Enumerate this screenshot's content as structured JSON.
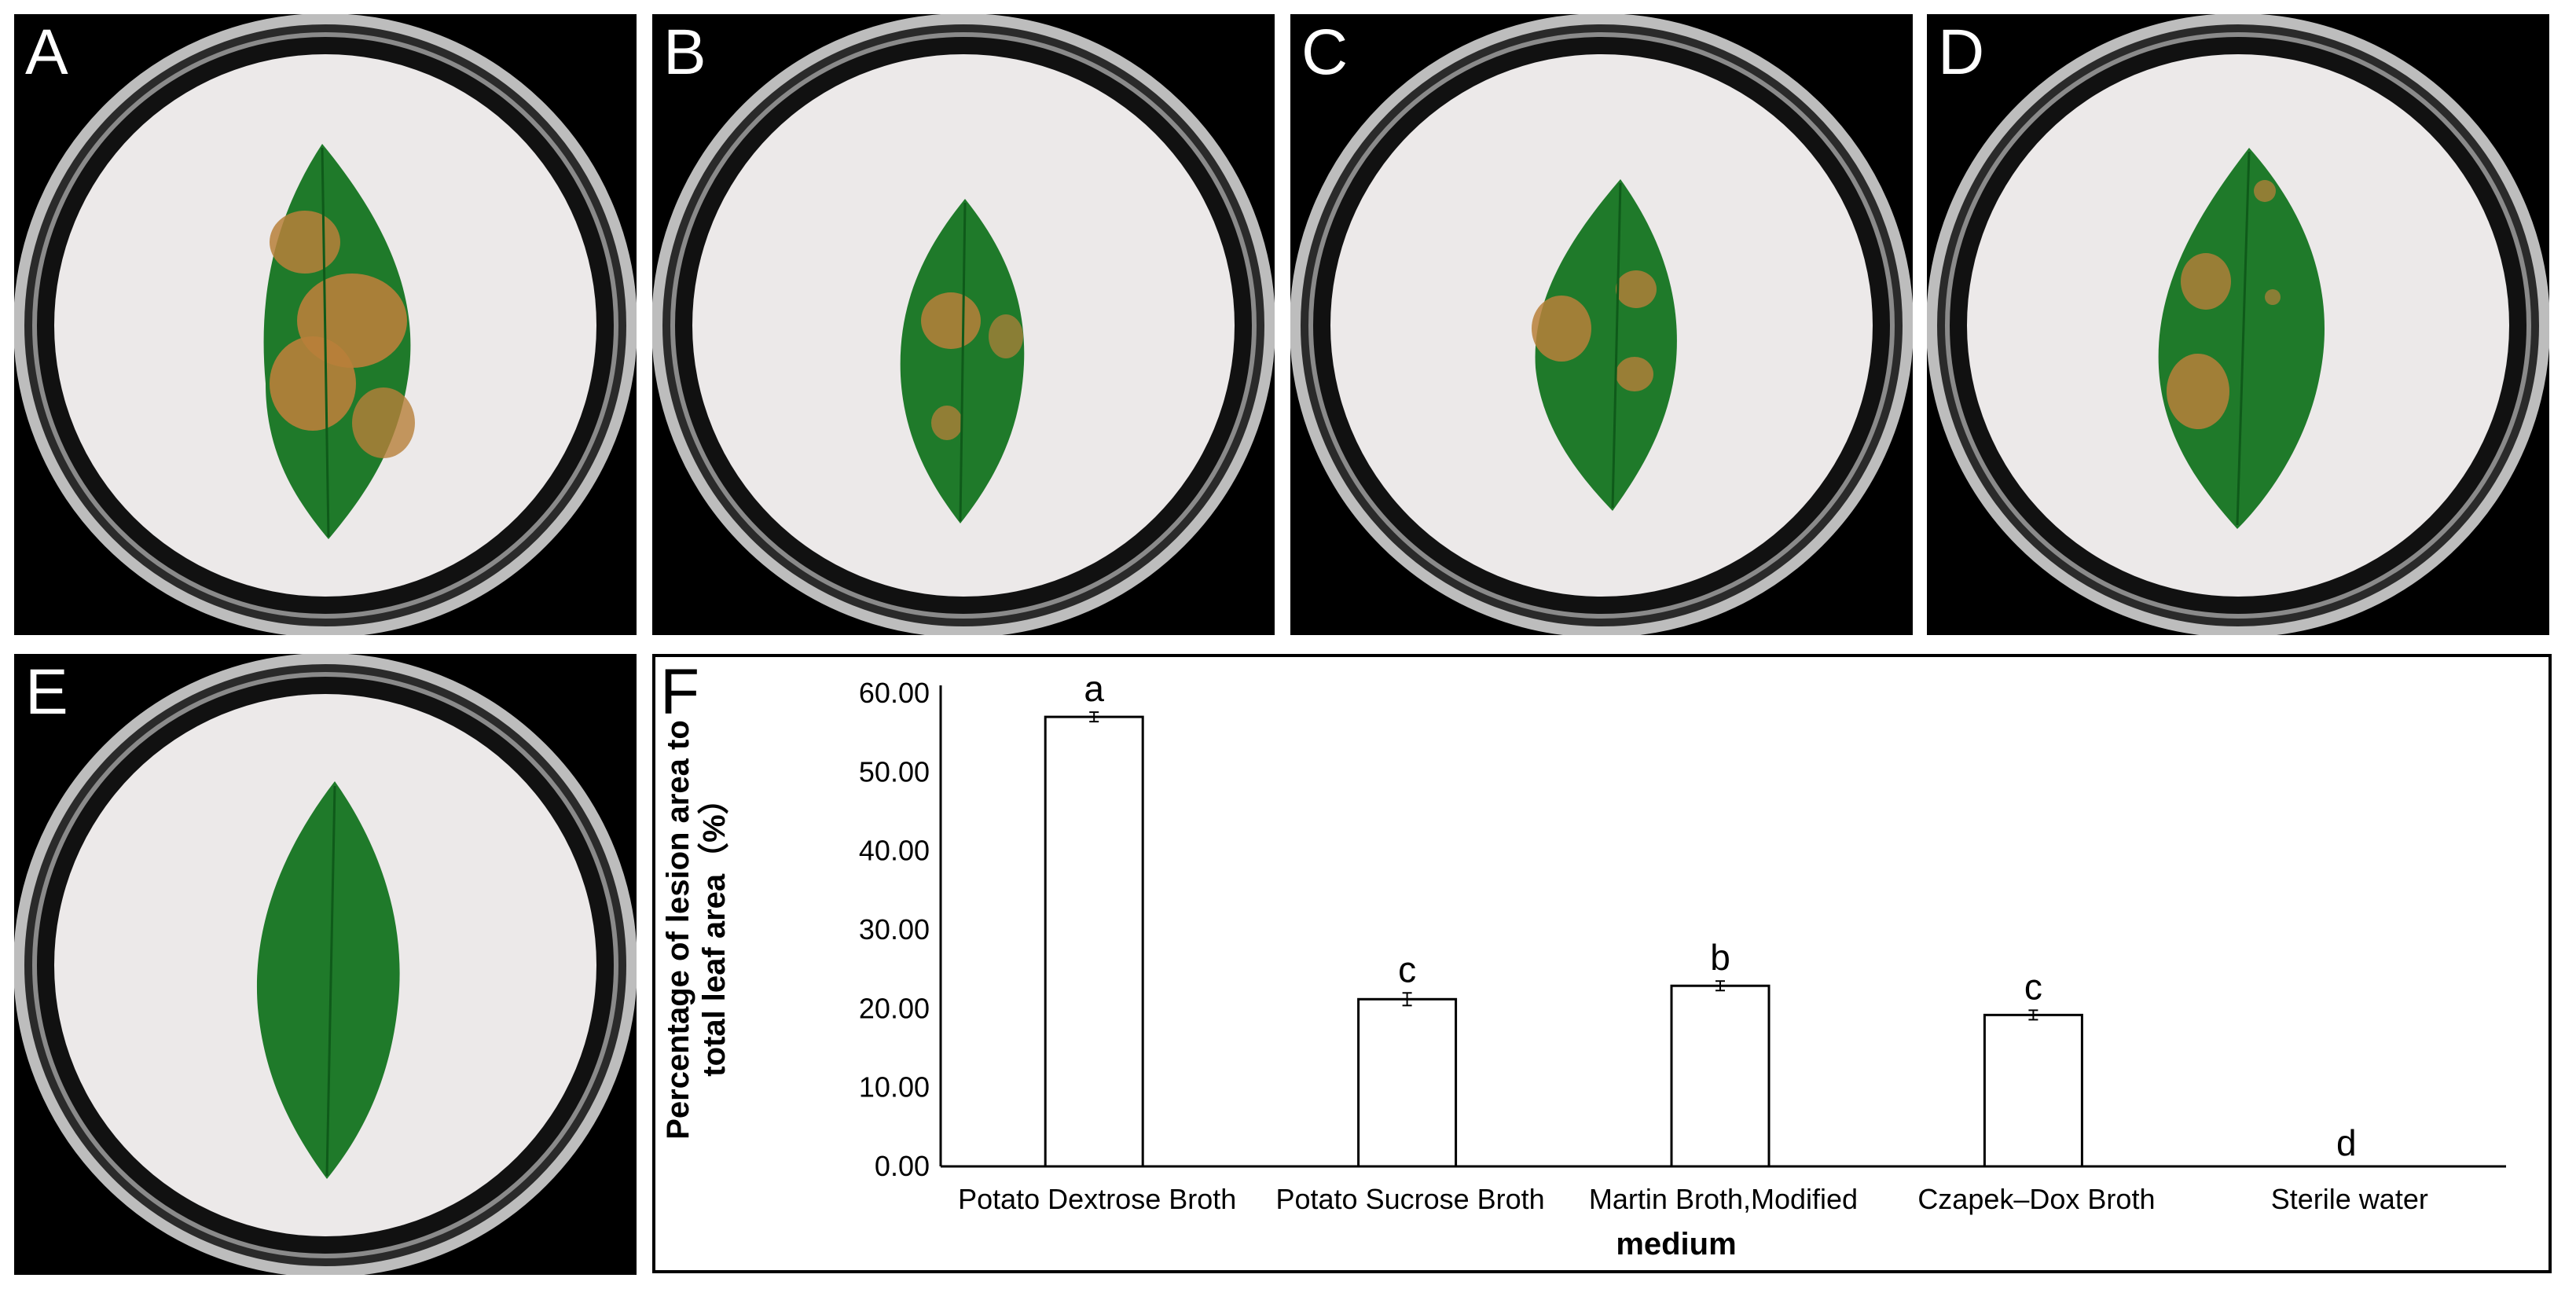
{
  "panels": [
    {
      "letter": "A"
    },
    {
      "letter": "B"
    },
    {
      "letter": "C"
    },
    {
      "letter": "D"
    },
    {
      "letter": "E"
    },
    {
      "letter": "F"
    }
  ],
  "colors": {
    "background": "#000000",
    "filter_paper": "#ece9e9",
    "leaf_green": "#1f7a2a",
    "lesion_brown": "#b8803a",
    "bar_fill": "#ffffff",
    "bar_stroke": "#000000"
  },
  "chart_data": {
    "type": "bar",
    "title": "",
    "xlabel": "medium",
    "ylabel": "Percentage of lesion area to total leaf area（%）",
    "ylabel_lines": [
      "Percentage of lesion area to",
      "total leaf area（%）"
    ],
    "categories": [
      "Potato Dextrose Broth",
      "Potato Sucrose Broth",
      "Martin Broth,Modified",
      "Czapek–Dox  Broth",
      "Sterile water"
    ],
    "values": [
      57.0,
      21.2,
      22.9,
      19.2,
      0.0
    ],
    "errors": [
      0.6,
      0.8,
      0.6,
      0.6,
      0.0
    ],
    "significance": [
      "a",
      "c",
      "b",
      "c",
      "d"
    ],
    "ylim": [
      0,
      60
    ],
    "yticks": [
      "0.00",
      "10.00",
      "20.00",
      "30.00",
      "40.00",
      "50.00",
      "60.00"
    ],
    "grid": false,
    "legend": "none"
  }
}
